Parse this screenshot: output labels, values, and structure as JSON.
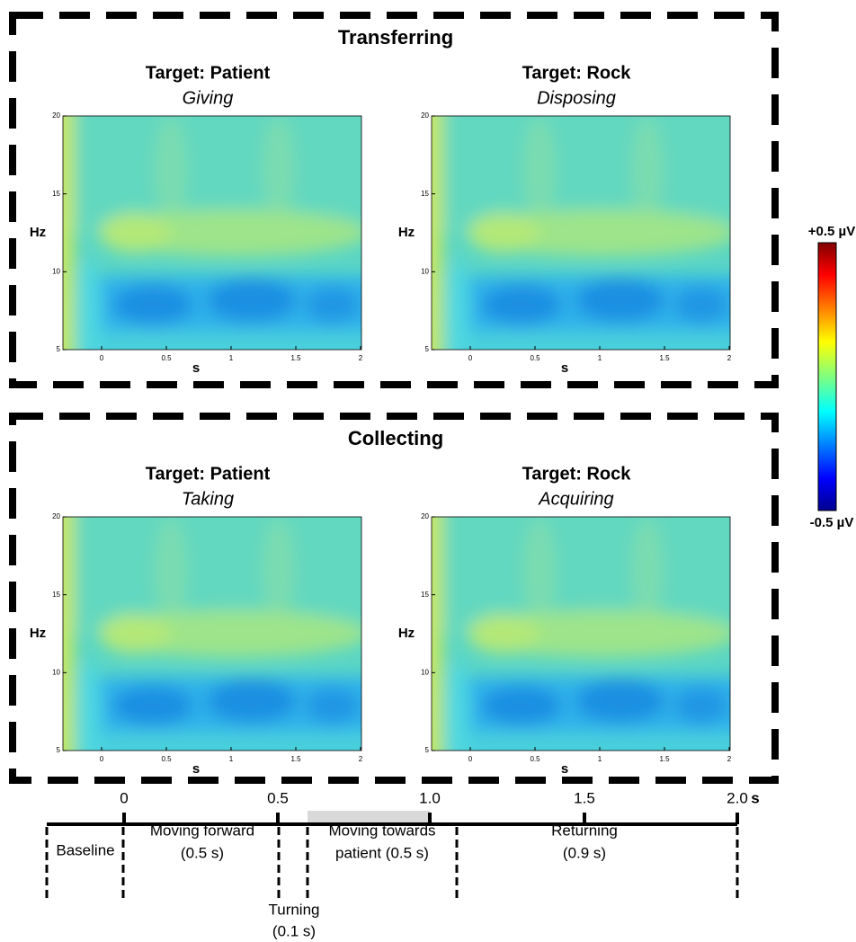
{
  "groups": [
    {
      "title": "Transferring",
      "panels": [
        {
          "target": "Target: Patient",
          "action": "Giving"
        },
        {
          "target": "Target: Rock",
          "action": "Disposing"
        }
      ]
    },
    {
      "title": "Collecting",
      "panels": [
        {
          "target": "Target: Patient",
          "action": "Taking"
        },
        {
          "target": "Target: Rock",
          "action": "Acquiring"
        }
      ]
    }
  ],
  "axes": {
    "y_label": "Hz",
    "x_label": "s",
    "yticks": [
      "5",
      "10",
      "15",
      "20"
    ],
    "xticks": [
      "0",
      "0.5",
      "1",
      "1.5",
      "2"
    ]
  },
  "colorbar": {
    "max": "+0.5 µV",
    "min": "-0.5 µV"
  },
  "timeline": {
    "ticks": [
      "0",
      "0.5",
      "1.0",
      "1.5",
      "2.0"
    ],
    "unit": "s",
    "phases": [
      {
        "label": "Baseline"
      },
      {
        "label": "Moving forward",
        "duration": "(0.5 s)"
      },
      {
        "label": "Turning",
        "duration": "(0.1 s)"
      },
      {
        "label": "Moving towards",
        "duration": "patient (0.5 s)"
      },
      {
        "label": "Returning",
        "duration": "(0.9 s)"
      }
    ]
  }
}
